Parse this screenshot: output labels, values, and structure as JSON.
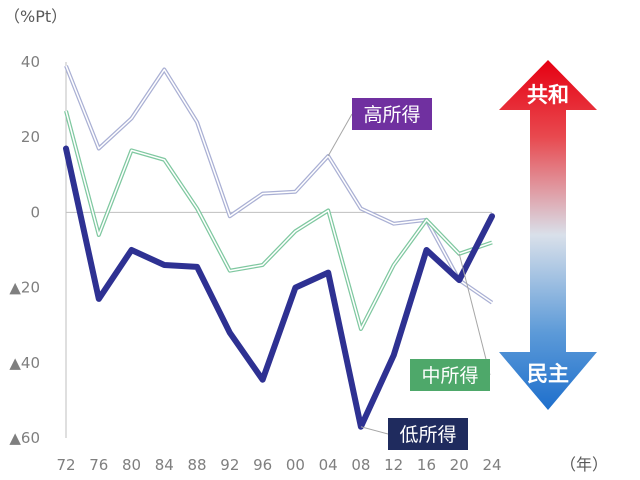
{
  "chart_data": {
    "type": "line",
    "ylabel_unit": "（%Pt）",
    "xlabel_unit": "（年）",
    "x_categories": [
      "72",
      "76",
      "80",
      "84",
      "88",
      "92",
      "96",
      "00",
      "04",
      "08",
      "12",
      "16",
      "20",
      "24"
    ],
    "ylim": [
      -60,
      40
    ],
    "y_ticks": [
      {
        "value": 40,
        "label": "40"
      },
      {
        "value": 20,
        "label": "20"
      },
      {
        "value": 0,
        "label": "0"
      },
      {
        "value": -20,
        "label": "▲20"
      },
      {
        "value": -40,
        "label": "▲40"
      },
      {
        "value": -60,
        "label": "▲60"
      }
    ],
    "grid": false,
    "series": [
      {
        "name": "高所得",
        "color": "#aab0d4",
        "label_color": "#7030a0",
        "values": [
          39,
          17,
          25,
          38,
          24,
          -1,
          5,
          5.5,
          15,
          1,
          -3,
          -2,
          -18,
          -24
        ]
      },
      {
        "name": "中所得",
        "color": "#7fc8a0",
        "label_color": "#4ea86a",
        "values": [
          27,
          -6,
          16.5,
          14,
          1,
          -15.5,
          -14,
          -5,
          0.5,
          -31,
          -14,
          -2,
          -11,
          -8
        ]
      },
      {
        "name": "低所得",
        "color": "#2e3192",
        "label_color": "#1f2b5e",
        "values": [
          17,
          -23,
          -10,
          -14,
          -14.5,
          -32,
          -44.5,
          -20,
          -16,
          -57,
          -38,
          -10,
          -18,
          -1
        ]
      }
    ],
    "scale_arrow": {
      "top_label": "共和",
      "bottom_label": "民主",
      "top_color": "#e60012",
      "bottom_color": "#2e7fd0"
    }
  }
}
